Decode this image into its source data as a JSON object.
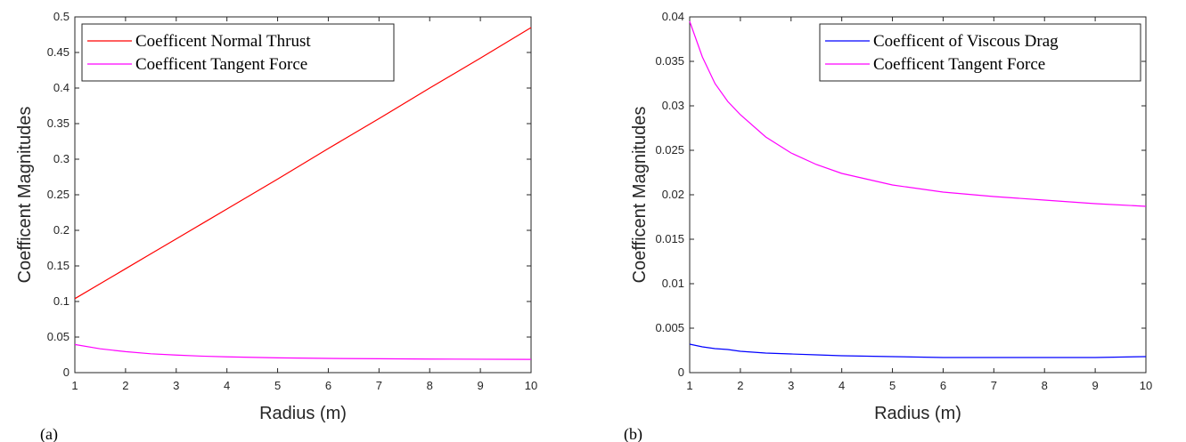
{
  "captions": [
    "(a)",
    "(b)"
  ],
  "chart_data": [
    {
      "type": "line",
      "xlabel": "Radius (m)",
      "ylabel": "Coefficent Magnitudes",
      "xlim": [
        1,
        10
      ],
      "ylim": [
        0,
        0.5
      ],
      "xticks": [
        1,
        2,
        3,
        4,
        5,
        6,
        7,
        8,
        9,
        10
      ],
      "yticks": [
        0,
        0.05,
        0.1,
        0.15,
        0.2,
        0.25,
        0.3,
        0.35,
        0.4,
        0.45,
        0.5
      ],
      "legend_position": "top-left",
      "x": [
        1,
        1.5,
        2,
        2.5,
        3,
        3.5,
        4,
        5,
        6,
        7,
        8,
        9,
        10
      ],
      "series": [
        {
          "name": "Coefficent Normal Thrust",
          "color": "#ff0000",
          "values": [
            0.104,
            0.125,
            0.146,
            0.167,
            0.188,
            0.209,
            0.23,
            0.272,
            0.315,
            0.357,
            0.4,
            0.442,
            0.485
          ]
        },
        {
          "name": "Coefficent Tangent Force",
          "color": "#ff00ff",
          "values": [
            0.0395,
            0.0335,
            0.0295,
            0.0265,
            0.0247,
            0.0232,
            0.0222,
            0.0208,
            0.02,
            0.0195,
            0.0191,
            0.0188,
            0.0186
          ]
        }
      ]
    },
    {
      "type": "line",
      "xlabel": "Radius (m)",
      "ylabel": "Coefficent Magnitudes",
      "xlim": [
        1,
        10
      ],
      "ylim": [
        0,
        0.04
      ],
      "xticks": [
        1,
        2,
        3,
        4,
        5,
        6,
        7,
        8,
        9,
        10
      ],
      "yticks": [
        0,
        0.005,
        0.01,
        0.015,
        0.02,
        0.025,
        0.03,
        0.035,
        0.04
      ],
      "legend_position": "top-right",
      "x": [
        1,
        1.25,
        1.5,
        1.75,
        2,
        2.5,
        3,
        3.5,
        4,
        5,
        6,
        7,
        8,
        9,
        10
      ],
      "series": [
        {
          "name": "Coefficent of Viscous Drag",
          "color": "#0000ff",
          "values": [
            0.0032,
            0.0029,
            0.0027,
            0.0026,
            0.0024,
            0.0022,
            0.0021,
            0.002,
            0.0019,
            0.0018,
            0.0017,
            0.0017,
            0.0017,
            0.0017,
            0.0018
          ]
        },
        {
          "name": "Coefficent Tangent Force",
          "color": "#ff00ff",
          "values": [
            0.0395,
            0.0355,
            0.0325,
            0.0305,
            0.029,
            0.0265,
            0.0247,
            0.0234,
            0.0224,
            0.0211,
            0.0203,
            0.0198,
            0.0194,
            0.019,
            0.0187
          ]
        }
      ]
    }
  ]
}
